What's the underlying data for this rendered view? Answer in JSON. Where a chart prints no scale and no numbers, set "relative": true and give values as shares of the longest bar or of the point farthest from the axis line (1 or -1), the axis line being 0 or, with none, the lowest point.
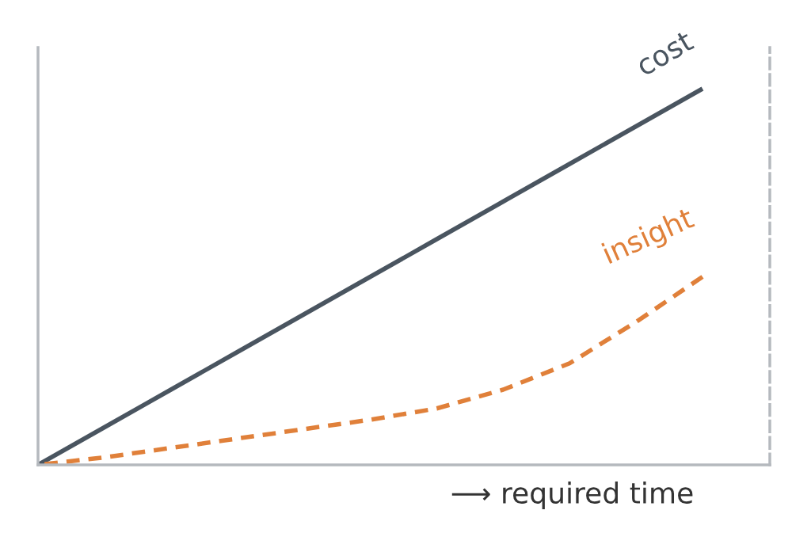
{
  "chart_data": {
    "type": "line",
    "relative": true,
    "xlabel": "⟶ required time",
    "categories": [
      null,
      null,
      null,
      null,
      null,
      null,
      null,
      null,
      null,
      null,
      null
    ],
    "series": [
      {
        "name": "cost",
        "color": "#4a5560",
        "line_style": "solid",
        "values": [
          0,
          0.1,
          0.2,
          0.3,
          0.4,
          0.5,
          0.6,
          0.7,
          0.8,
          0.9,
          1
        ]
      },
      {
        "name": "insight",
        "color": "#e0803a",
        "line_style": "dashed",
        "values": [
          0,
          0.02,
          0.045,
          0.07,
          0.095,
          0.12,
          0.15,
          0.2,
          0.27,
          0.38,
          0.5
        ]
      }
    ],
    "grid": false,
    "legend": false,
    "marker": "none"
  }
}
